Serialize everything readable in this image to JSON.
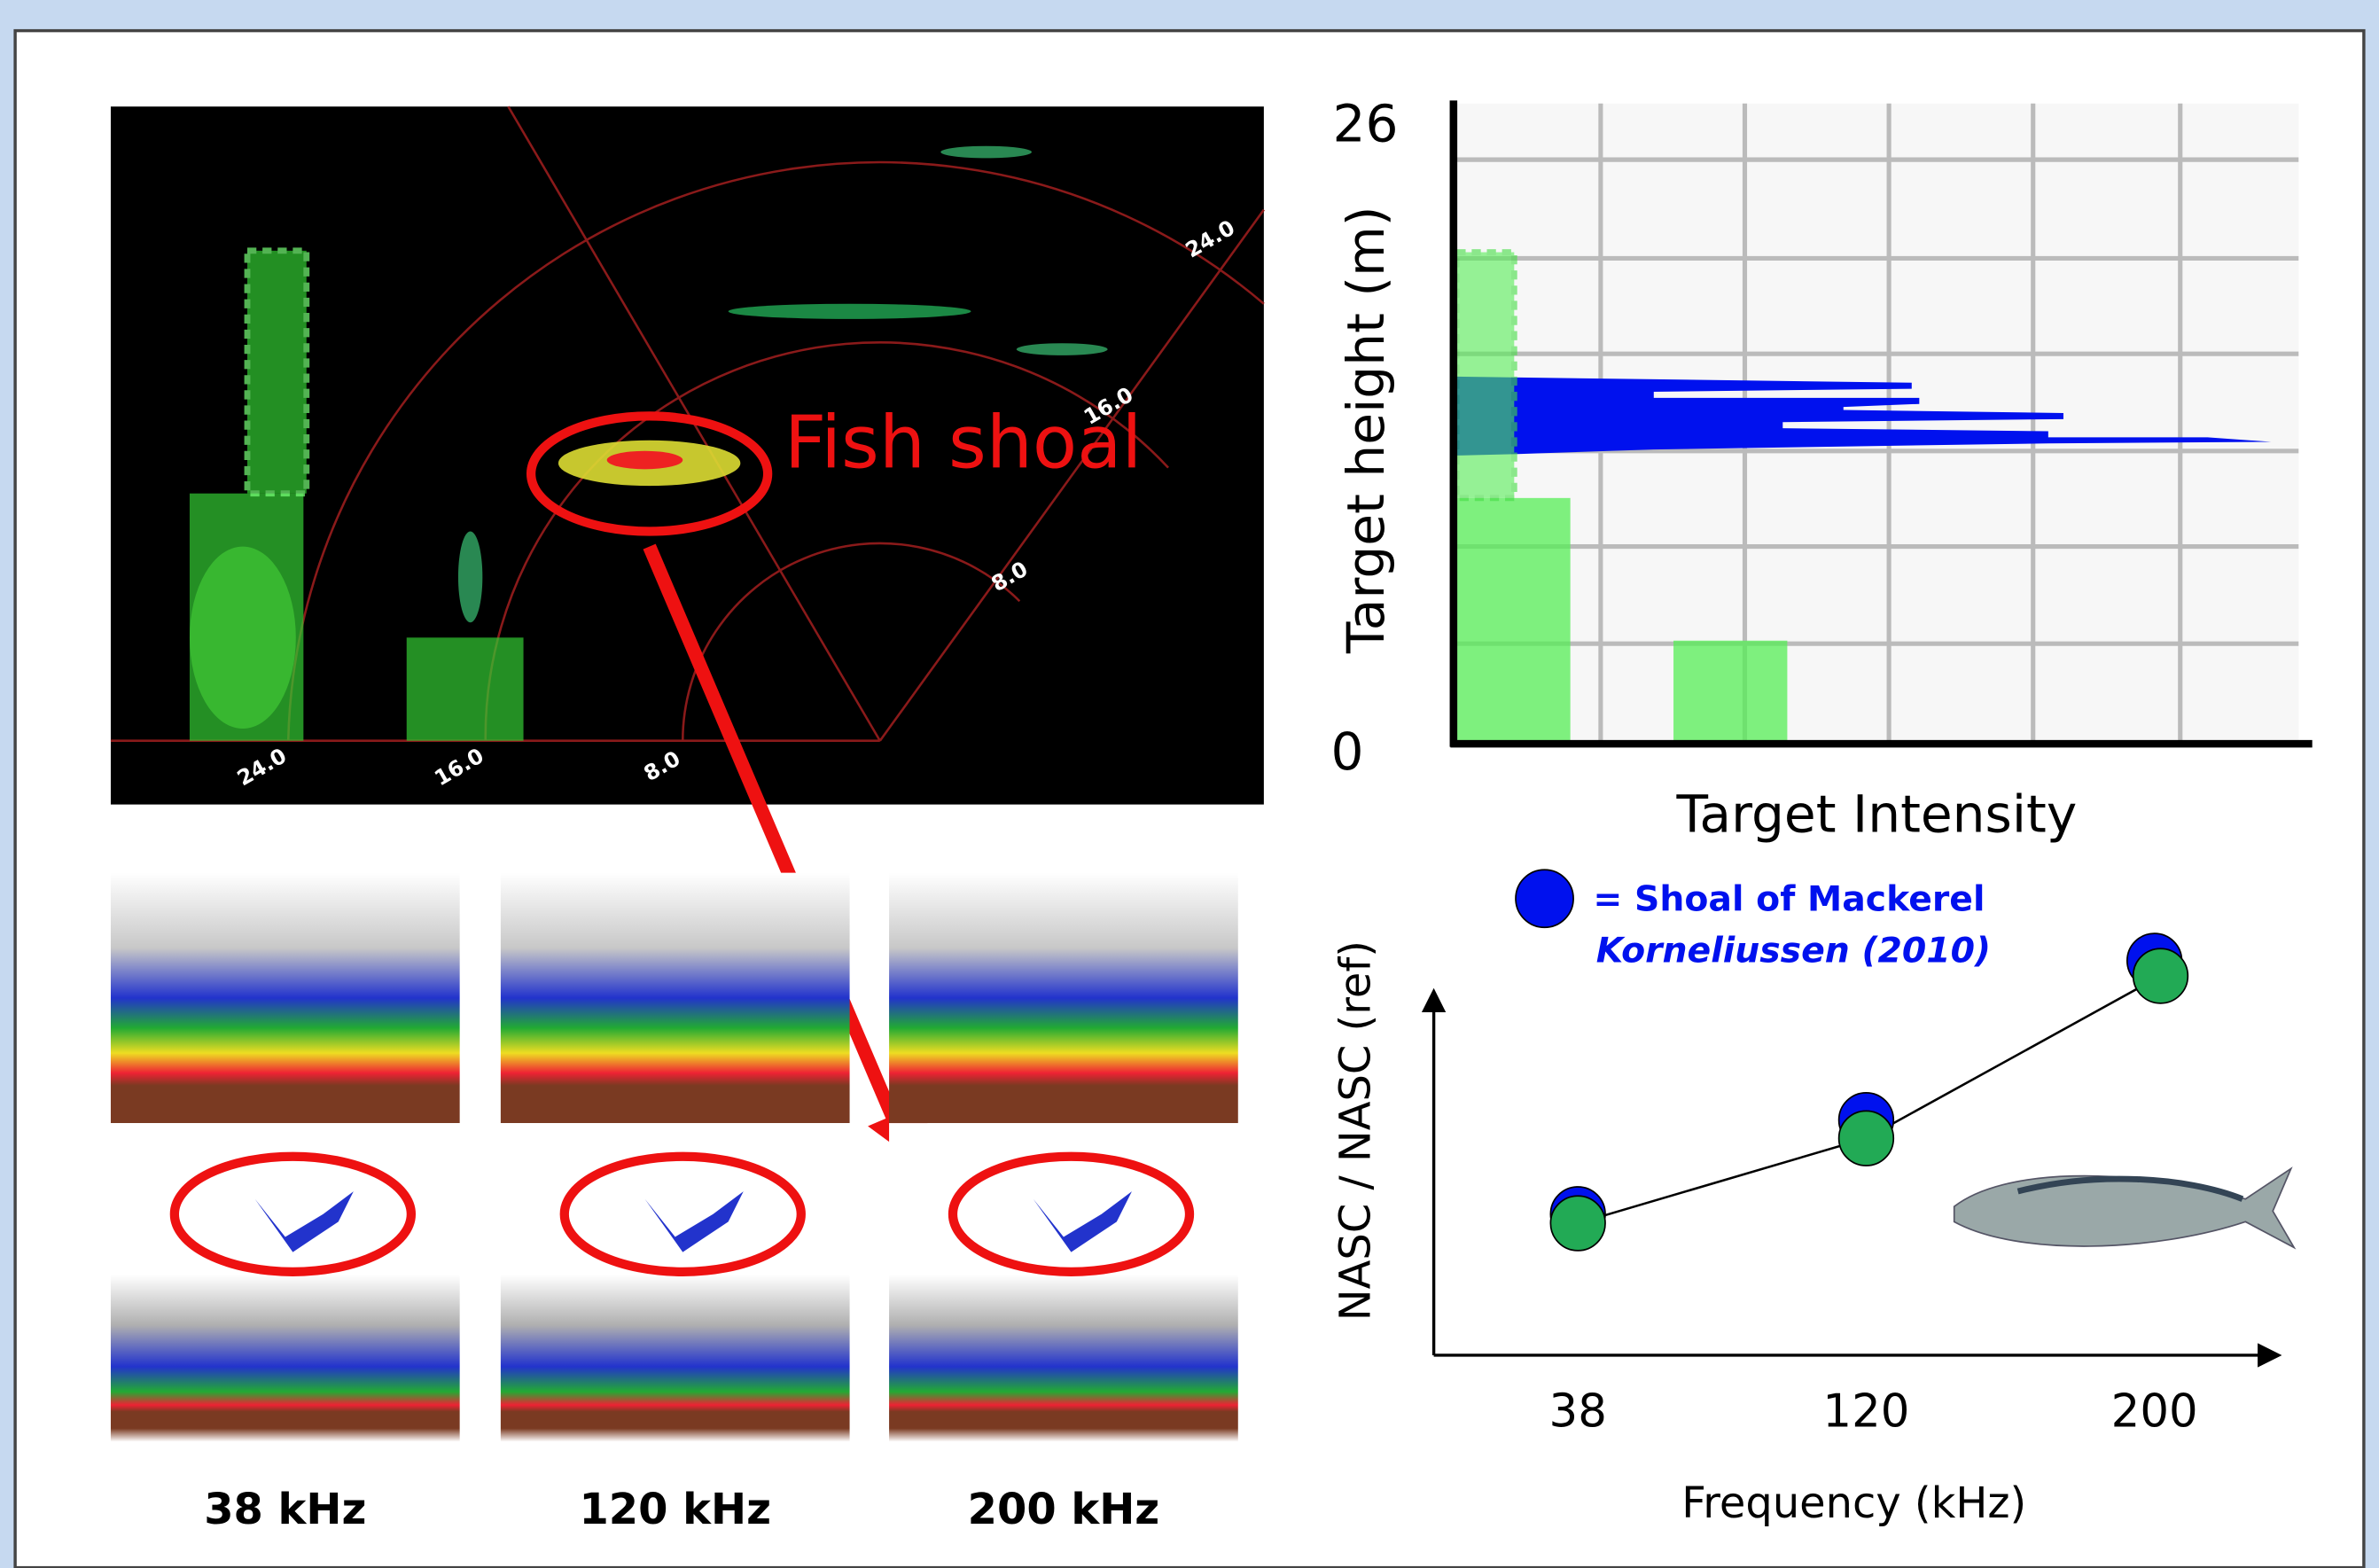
{
  "sonar": {
    "range_labels_bottom": [
      "24.0",
      "16.0",
      "8.0"
    ],
    "range_labels_arc": [
      "24.0",
      "16.0",
      "8.0"
    ],
    "annotation": "Fish shoal"
  },
  "echograms": {
    "labels": [
      "38 kHz",
      "120 kHz",
      "200 kHz"
    ]
  },
  "height_profile": {
    "y_axis_label": "Target height (m)",
    "y_top": "26",
    "y_bottom": "0",
    "x_axis_label": "Target Intensity"
  },
  "frequency_response": {
    "legend": [
      "= Shoal of Mackerel",
      "Korneliussen (2010)"
    ],
    "y_axis_label": "NASC / NASC (ref)",
    "x_ticks": [
      "38",
      "120",
      "200"
    ],
    "x_axis_label": "Frequency (kHz)"
  }
}
